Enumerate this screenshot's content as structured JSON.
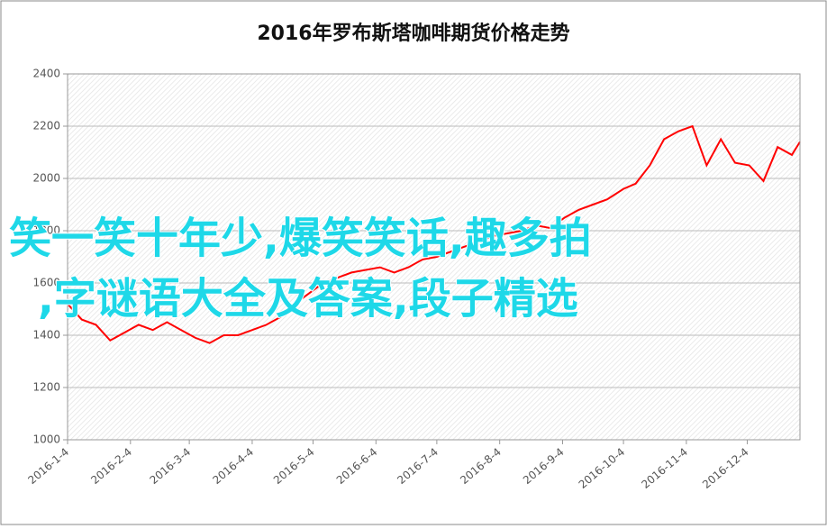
{
  "chart_data": {
    "type": "line",
    "title": "2016年罗布斯塔咖啡期货价格走势",
    "annotations": [
      "笑一笑十年少,爆笑笑话,趣多拍",
      ",字谜语大全及答案,段子精选"
    ],
    "x": [
      "2016-1-4",
      "2016-1-11",
      "2016-1-18",
      "2016-1-25",
      "2016-2-1",
      "2016-2-8",
      "2016-2-15",
      "2016-2-22",
      "2016-2-29",
      "2016-3-7",
      "2016-3-14",
      "2016-3-21",
      "2016-3-28",
      "2016-4-4",
      "2016-4-11",
      "2016-4-18",
      "2016-4-25",
      "2016-5-2",
      "2016-5-9",
      "2016-5-16",
      "2016-5-23",
      "2016-5-30",
      "2016-6-6",
      "2016-6-13",
      "2016-6-20",
      "2016-6-27",
      "2016-7-4",
      "2016-7-11",
      "2016-7-18",
      "2016-7-25",
      "2016-8-1",
      "2016-8-8",
      "2016-8-15",
      "2016-8-22",
      "2016-8-29",
      "2016-9-5",
      "2016-9-12",
      "2016-9-19",
      "2016-9-26",
      "2016-10-4",
      "2016-10-10",
      "2016-10-17",
      "2016-10-24",
      "2016-10-31",
      "2016-11-7",
      "2016-11-14",
      "2016-11-21",
      "2016-11-28",
      "2016-12-5",
      "2016-12-12",
      "2016-12-19",
      "2016-12-26",
      "2016-12-30"
    ],
    "series": [
      {
        "color": "#ff0000",
        "values": [
          1520,
          1460,
          1440,
          1380,
          1410,
          1440,
          1420,
          1450,
          1420,
          1390,
          1370,
          1400,
          1400,
          1420,
          1440,
          1470,
          1520,
          1560,
          1600,
          1620,
          1640,
          1650,
          1660,
          1640,
          1660,
          1690,
          1700,
          1720,
          1740,
          1760,
          1780,
          1790,
          1800,
          1820,
          1810,
          1850,
          1880,
          1900,
          1920,
          1960,
          1980,
          2050,
          2150,
          2180,
          2200,
          2050,
          2150,
          2060,
          2050,
          1990,
          2120,
          2090,
          2140
        ]
      }
    ],
    "xlim": [
      "2016-1-4",
      "2016-12-30"
    ],
    "xticks": [
      "2016-1-4",
      "2016-2-4",
      "2016-3-4",
      "2016-4-4",
      "2016-5-4",
      "2016-6-4",
      "2016-7-4",
      "2016-8-4",
      "2016-9-4",
      "2016-10-4",
      "2016-11-4",
      "2016-12-4"
    ],
    "ylim": [
      1000,
      2400
    ],
    "yticks": [
      1000,
      1200,
      1400,
      1600,
      1800,
      2000,
      2200,
      2400
    ],
    "grid": true
  }
}
